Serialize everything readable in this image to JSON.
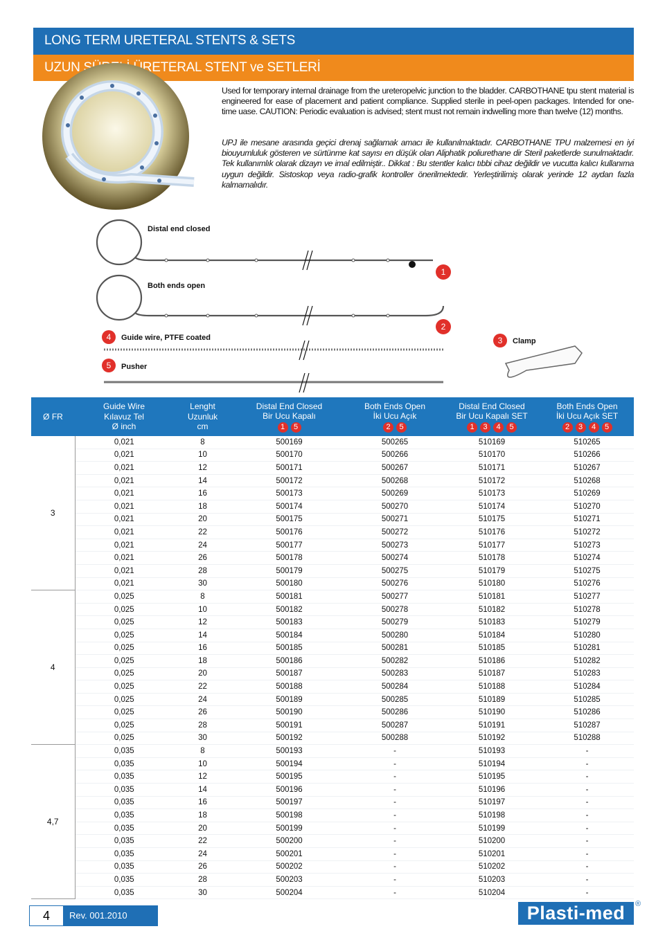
{
  "header": {
    "title_en": "LONG TERM URETERAL STENTS & SETS",
    "title_tr": "UZUN SÜRELİ ÜRETERAL STENT ve SETLERİ"
  },
  "description": {
    "en": "Used for temporary internal drainage from the ureteropelvic junction to the bladder. CARBOTHANE tpu  stent material is engineered for ease of placement and patient compliance. Supplied sterile in peel-open packages. Intended for one-time uase. CAUTION: Periodic evaluation is advised; stent must not remain indwelling more than twelve (12) months.",
    "tr": "UPJ ile mesane arasında geçici drenaj sağlamak amacı ile kullanılmaktadır. CARBOTHANE  TPU malzemesi en iyi biouyumluluk gösteren ve sürtünme kat sayısı en düşük olan Aliphatik poliurethane dir  Steril paketlerde sunulmaktadır. Tek kullanımlık olarak dizayn ve imal edilmiştir.. Dikkat : Bu stentler kalıcı tıbbi cihaz değildir ve vucutta kalıcı kullanıma uygun değildir. Sistoskop veya radio-grafik kontroller önerilmektedir. Yerleştirilimiş olarak yerinde 12 aydan fazla kalmamalıdır."
  },
  "diagram": {
    "distal_label": "Distal end closed",
    "both_label": "Both ends open",
    "guide_badge": "4",
    "guide_label": "Guide wire, PTFE coated",
    "clamp_badge": "3",
    "clamp_label": "Clamp",
    "pusher_badge": "5",
    "pusher_label": "Pusher",
    "badge_1": "1",
    "badge_2": "2"
  },
  "table": {
    "header": [
      {
        "lines": [
          "Ø FR"
        ],
        "badges": []
      },
      {
        "lines": [
          "Guide Wire",
          "Kılavuz Tel",
          "Ø  inch"
        ],
        "badges": []
      },
      {
        "lines": [
          "Lenght",
          "Uzunluk",
          "cm"
        ],
        "badges": []
      },
      {
        "lines": [
          "Distal End Closed",
          "Bir Ucu Kapalı"
        ],
        "badges": [
          "1",
          "5"
        ]
      },
      {
        "lines": [
          "Both Ends Open",
          "İki Ucu Açık"
        ],
        "badges": [
          "2",
          "5"
        ]
      },
      {
        "lines": [
          "Distal End Closed",
          "Bir Ucu Kapalı  SET"
        ],
        "badges": [
          "1",
          "3",
          "4",
          "5"
        ]
      },
      {
        "lines": [
          "Both Ends Open",
          "İki Ucu Açık  SET"
        ],
        "badges": [
          "2",
          "3",
          "4",
          "5"
        ]
      }
    ],
    "groups": [
      {
        "fr": "3",
        "rows": [
          [
            "0,021",
            "8",
            "500169",
            "500265",
            "510169",
            "510265"
          ],
          [
            "0,021",
            "10",
            "500170",
            "500266",
            "510170",
            "510266"
          ],
          [
            "0,021",
            "12",
            "500171",
            "500267",
            "510171",
            "510267"
          ],
          [
            "0,021",
            "14",
            "500172",
            "500268",
            "510172",
            "510268"
          ],
          [
            "0,021",
            "16",
            "500173",
            "500269",
            "510173",
            "510269"
          ],
          [
            "0,021",
            "18",
            "500174",
            "500270",
            "510174",
            "510270"
          ],
          [
            "0,021",
            "20",
            "500175",
            "500271",
            "510175",
            "510271"
          ],
          [
            "0,021",
            "22",
            "500176",
            "500272",
            "510176",
            "510272"
          ],
          [
            "0,021",
            "24",
            "500177",
            "500273",
            "510177",
            "510273"
          ],
          [
            "0,021",
            "26",
            "500178",
            "500274",
            "510178",
            "510274"
          ],
          [
            "0,021",
            "28",
            "500179",
            "500275",
            "510179",
            "510275"
          ],
          [
            "0,021",
            "30",
            "500180",
            "500276",
            "510180",
            "510276"
          ]
        ]
      },
      {
        "fr": "4",
        "rows": [
          [
            "0,025",
            "8",
            "500181",
            "500277",
            "510181",
            "510277"
          ],
          [
            "0,025",
            "10",
            "500182",
            "500278",
            "510182",
            "510278"
          ],
          [
            "0,025",
            "12",
            "500183",
            "500279",
            "510183",
            "510279"
          ],
          [
            "0,025",
            "14",
            "500184",
            "500280",
            "510184",
            "510280"
          ],
          [
            "0,025",
            "16",
            "500185",
            "500281",
            "510185",
            "510281"
          ],
          [
            "0,025",
            "18",
            "500186",
            "500282",
            "510186",
            "510282"
          ],
          [
            "0,025",
            "20",
            "500187",
            "500283",
            "510187",
            "510283"
          ],
          [
            "0,025",
            "22",
            "500188",
            "500284",
            "510188",
            "510284"
          ],
          [
            "0,025",
            "24",
            "500189",
            "500285",
            "510189",
            "510285"
          ],
          [
            "0,025",
            "26",
            "500190",
            "500286",
            "510190",
            "510286"
          ],
          [
            "0,025",
            "28",
            "500191",
            "500287",
            "510191",
            "510287"
          ],
          [
            "0,025",
            "30",
            "500192",
            "500288",
            "510192",
            "510288"
          ]
        ]
      },
      {
        "fr": "4,7",
        "rows": [
          [
            "0,035",
            "8",
            "500193",
            "-",
            "510193",
            "-"
          ],
          [
            "0,035",
            "10",
            "500194",
            "-",
            "510194",
            "-"
          ],
          [
            "0,035",
            "12",
            "500195",
            "-",
            "510195",
            "-"
          ],
          [
            "0,035",
            "14",
            "500196",
            "-",
            "510196",
            "-"
          ],
          [
            "0,035",
            "16",
            "500197",
            "-",
            "510197",
            "-"
          ],
          [
            "0,035",
            "18",
            "500198",
            "-",
            "510198",
            "-"
          ],
          [
            "0,035",
            "20",
            "500199",
            "-",
            "510199",
            "-"
          ],
          [
            "0,035",
            "22",
            "500200",
            "-",
            "510200",
            "-"
          ],
          [
            "0,035",
            "24",
            "500201",
            "-",
            "510201",
            "-"
          ],
          [
            "0,035",
            "26",
            "500202",
            "-",
            "510202",
            "-"
          ],
          [
            "0,035",
            "28",
            "500203",
            "-",
            "510203",
            "-"
          ],
          [
            "0,035",
            "30",
            "500204",
            "-",
            "510204",
            "-"
          ]
        ]
      }
    ]
  },
  "footer": {
    "page": "4",
    "revision": "Rev. 001.2010",
    "logo": "Plasti-med",
    "registered": "®"
  }
}
